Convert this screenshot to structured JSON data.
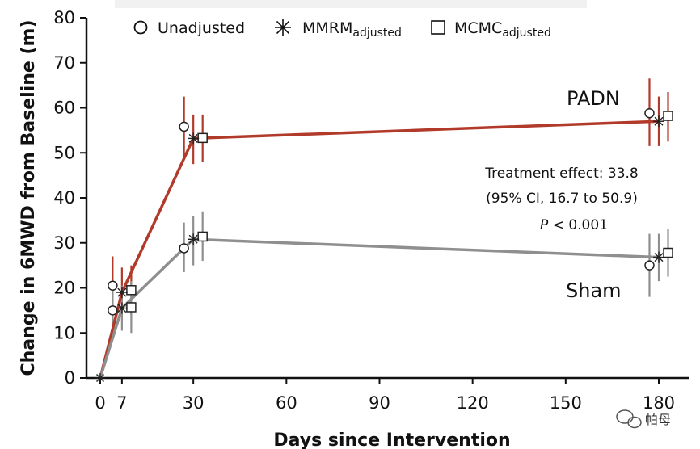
{
  "chart_data": {
    "type": "line",
    "xlabel": "Days since Intervention",
    "ylabel": "Change in 6MWD from Baseline (m)",
    "x_ticks": [
      0,
      7,
      30,
      60,
      90,
      120,
      150,
      180
    ],
    "y_ticks": [
      0,
      10,
      20,
      30,
      40,
      50,
      60,
      70,
      80
    ],
    "xlim": [
      -3,
      188
    ],
    "ylim": [
      0,
      80
    ],
    "grid": false,
    "legend_position": "top",
    "legend": [
      {
        "marker": "circle",
        "label": "Unadjusted",
        "sub": ""
      },
      {
        "marker": "asterisk",
        "label": "MMRM",
        "sub": "adjusted"
      },
      {
        "marker": "square",
        "label": "MCMC",
        "sub": "adjusted"
      }
    ],
    "series": [
      {
        "name": "PADN",
        "color": "#b23a2a",
        "line": {
          "x": [
            0,
            7,
            30,
            180
          ],
          "y": [
            0,
            19,
            53.2,
            57
          ]
        },
        "unadjusted": [
          {
            "x": 4,
            "y": 20.5,
            "lo": 13.5,
            "hi": 27.0
          },
          {
            "x": 27,
            "y": 55.8,
            "lo": 49.0,
            "hi": 62.5
          },
          {
            "x": 177,
            "y": 58.8,
            "lo": 51.5,
            "hi": 66.5
          }
        ],
        "mmrm": [
          {
            "x": 7,
            "y": 19.0,
            "lo": 13.0,
            "hi": 24.5
          },
          {
            "x": 30,
            "y": 53.2,
            "lo": 47.5,
            "hi": 58.5
          },
          {
            "x": 180,
            "y": 57.0,
            "lo": 51.5,
            "hi": 62.5
          }
        ],
        "mcmc": [
          {
            "x": 10,
            "y": 19.5,
            "lo": 14.0,
            "hi": 25.0
          },
          {
            "x": 33,
            "y": 53.3,
            "lo": 48.0,
            "hi": 58.5
          },
          {
            "x": 183,
            "y": 58.2,
            "lo": 52.5,
            "hi": 63.5
          }
        ]
      },
      {
        "name": "Sham",
        "color": "#8f8f8f",
        "line": {
          "x": [
            0,
            7,
            30,
            180
          ],
          "y": [
            0,
            15.5,
            30.8,
            26.8
          ]
        },
        "unadjusted": [
          {
            "x": 4,
            "y": 15.0,
            "lo": 9.0,
            "hi": 21.0
          },
          {
            "x": 27,
            "y": 28.8,
            "lo": 23.5,
            "hi": 34.5
          },
          {
            "x": 177,
            "y": 25.0,
            "lo": 18.0,
            "hi": 32.0
          }
        ],
        "mmrm": [
          {
            "x": 7,
            "y": 15.5,
            "lo": 10.5,
            "hi": 20.5
          },
          {
            "x": 30,
            "y": 30.8,
            "lo": 25.0,
            "hi": 36.0
          },
          {
            "x": 180,
            "y": 26.8,
            "lo": 21.5,
            "hi": 32.0
          }
        ],
        "mcmc": [
          {
            "x": 10,
            "y": 15.7,
            "lo": 10.0,
            "hi": 21.5
          },
          {
            "x": 33,
            "y": 31.4,
            "lo": 26.0,
            "hi": 37.0
          },
          {
            "x": 183,
            "y": 27.8,
            "lo": 22.5,
            "hi": 33.0
          }
        ]
      }
    ],
    "annotations": [
      "Treatment effect: 33.8",
      "(95% CI, 16.7 to 50.9)",
      "P < 0.001"
    ],
    "watermark": "帕母"
  }
}
